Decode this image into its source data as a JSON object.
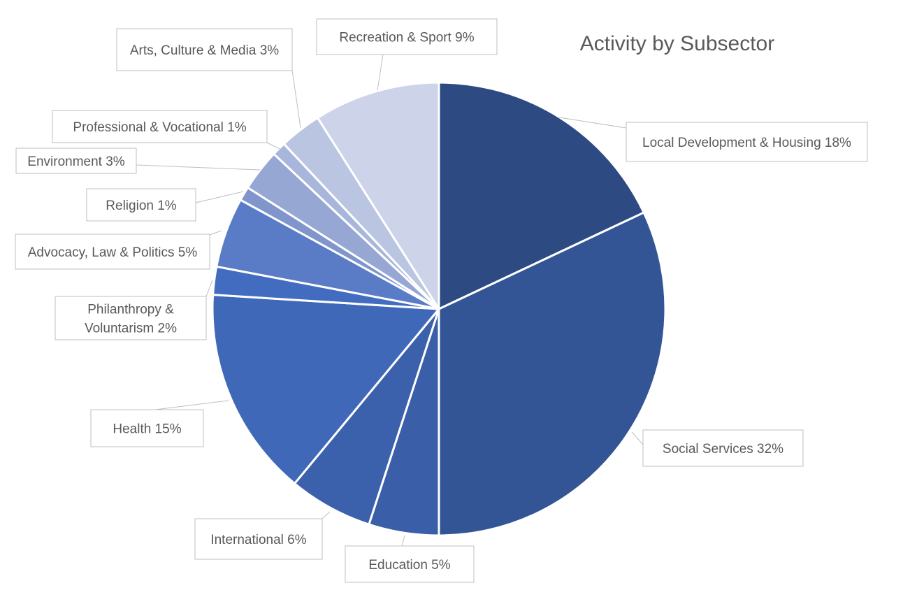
{
  "chart_data": {
    "type": "pie",
    "title": "Activity by Subsector",
    "start_angle_deg": 0,
    "direction": "clockwise",
    "slices": [
      {
        "label": "Local Development & Housing 18%",
        "name": "Local Development & Housing",
        "value": 18,
        "color": "#2E4A82"
      },
      {
        "label": "Social Services 32%",
        "name": "Social Services",
        "value": 32,
        "color": "#335595"
      },
      {
        "label": "Education 5%",
        "name": "Education",
        "value": 5,
        "color": "#3A5EA8"
      },
      {
        "label": "International 6%",
        "name": "International",
        "value": 6,
        "color": "#3B61AC"
      },
      {
        "label": "Health 15%",
        "name": "Health",
        "value": 15,
        "color": "#3F69B8"
      },
      {
        "label": "Philanthropy & Voluntarism 2%",
        "name": "Philanthropy & Voluntarism",
        "value": 2,
        "color": "#426CC0"
      },
      {
        "label": "Advocacy, Law & Politics 5%",
        "name": "Advocacy, Law & Politics",
        "value": 5,
        "color": "#5A7BC6"
      },
      {
        "label": "Religion 1%",
        "name": "Religion",
        "value": 1,
        "color": "#7F95CC"
      },
      {
        "label": "Environment 3%",
        "name": "Environment",
        "value": 3,
        "color": "#97A7D4"
      },
      {
        "label": "Professional & Vocational 1%",
        "name": "Professional & Vocational",
        "value": 1,
        "color": "#A8B6DB"
      },
      {
        "label": "Arts, Culture & Media 3%",
        "name": "Arts, Culture & Media",
        "value": 3,
        "color": "#BAC5E2"
      },
      {
        "label": "Recreation & Sport 9%",
        "name": "Recreation & Sport",
        "value": 9,
        "color": "#CDD3E9"
      }
    ]
  }
}
